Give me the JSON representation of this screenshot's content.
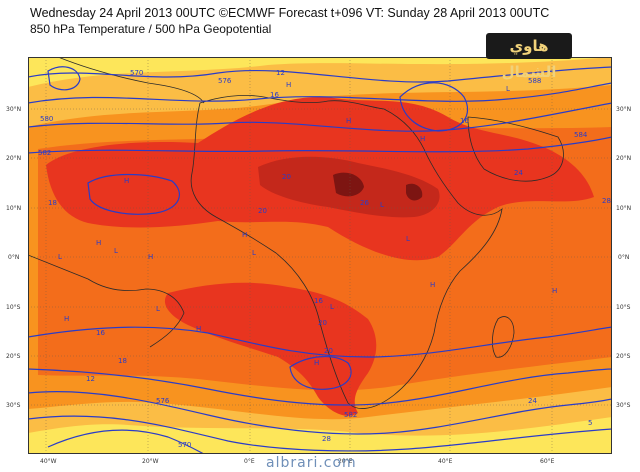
{
  "header": {
    "title": "Wednesday 24 April 2013 00UTC ©ECMWF Forecast t+096 VT: Sunday 28 April 2013 00UTC",
    "subtitle": "850 hPa Temperature / 500 hPa Geopotential"
  },
  "logo": {
    "text": "هاوي الشمال"
  },
  "watermark": "albrari.com",
  "lat_labels": [
    "30°N",
    "20°N",
    "10°N",
    "0°N",
    "10°S",
    "20°S",
    "30°S"
  ],
  "lon_labels": [
    "40°W",
    "20°W",
    "0°E",
    "20°E",
    "40°E",
    "60°E"
  ],
  "contour_labels": [
    "570",
    "576",
    "580",
    "582",
    "584",
    "588",
    "12",
    "16",
    "16",
    "18",
    "20",
    "20",
    "24",
    "26",
    "28",
    "12",
    "16",
    "16",
    "18",
    "20",
    "20",
    "24",
    "28",
    "576",
    "570",
    "582",
    "5"
  ],
  "pressure_marks": [
    "H",
    "H",
    "H",
    "H",
    "H",
    "L",
    "L",
    "L",
    "L",
    "H",
    "H",
    "H",
    "L",
    "L",
    "H",
    "H",
    "L",
    "H",
    "L",
    "H"
  ],
  "colors": {
    "yellow": "#fde65a",
    "light_orange": "#fbbd45",
    "orange": "#f8931f",
    "deep_orange": "#f36d1b",
    "red": "#e8351f",
    "dark_red": "#c4281b",
    "maroon": "#7d1512",
    "contour": "#2a3cc8",
    "coast": "#2b2b2b"
  }
}
